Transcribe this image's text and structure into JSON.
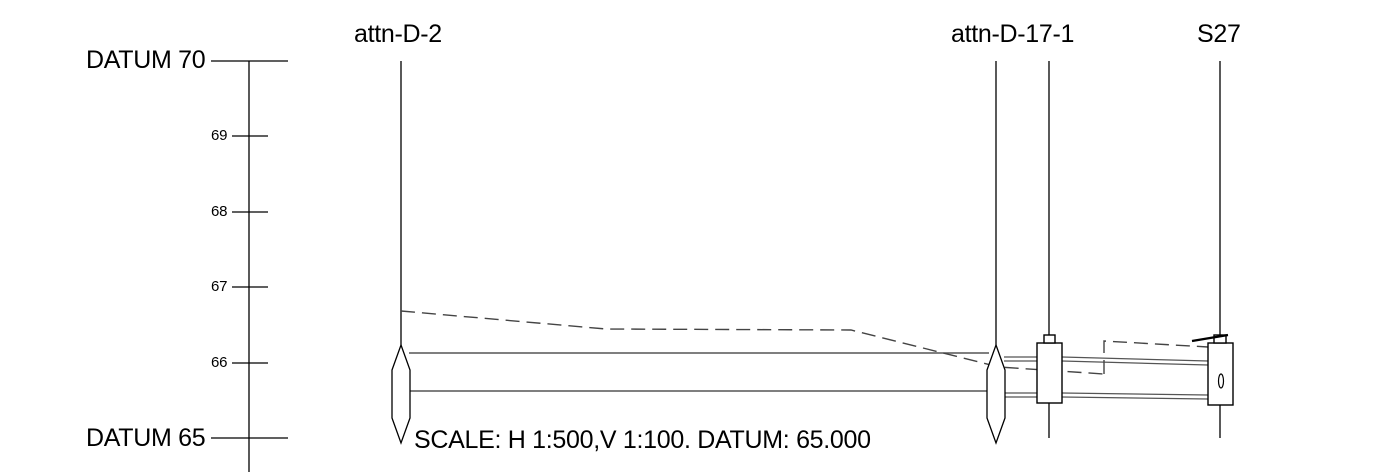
{
  "axis": {
    "datum_top": "DATUM 70",
    "datum_bottom": "DATUM 65",
    "ticks": [
      "69",
      "68",
      "67",
      "66"
    ]
  },
  "stations": [
    {
      "label": "attn-D-2"
    },
    {
      "label": "attn-D-17-1"
    },
    {
      "label": "S27"
    }
  ],
  "scale_note": "SCALE: H 1:500,V 1:100. DATUM: 65.000",
  "colors": {
    "line": "#000000",
    "ground_line": "#444444",
    "background": "#ffffff"
  }
}
